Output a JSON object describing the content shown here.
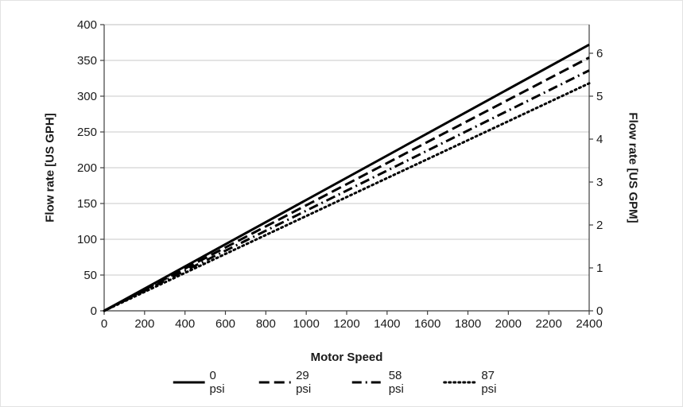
{
  "chart_data": {
    "type": "line",
    "title": "",
    "xlabel": "Motor Speed",
    "ylabel_left": "Flow rate [US GPH]",
    "ylabel_right": "Flow rate [US GPM]",
    "x_range": [
      0,
      2400
    ],
    "x_ticks": [
      0,
      200,
      400,
      600,
      800,
      1000,
      1200,
      1400,
      1600,
      1800,
      2000,
      2200,
      2400
    ],
    "y_left_range": [
      0,
      400
    ],
    "y_left_ticks": [
      0,
      50,
      100,
      150,
      200,
      250,
      300,
      350,
      400
    ],
    "y_right_ticks": [
      0,
      1,
      2,
      3,
      4,
      5,
      6
    ],
    "gpm_to_gph": 60,
    "grid": "horizontal-only",
    "legend_position": "bottom",
    "line_color": "#000000",
    "grid_color": "#c9c9c9",
    "axis_color": "#3f3f3f",
    "series": [
      {
        "name": "0 psi",
        "style": "solid",
        "x": [
          0,
          2400
        ],
        "y_gph": [
          0,
          372
        ]
      },
      {
        "name": "29 psi",
        "style": "dashed",
        "x": [
          0,
          2400
        ],
        "y_gph": [
          0,
          354
        ]
      },
      {
        "name": "58 psi",
        "style": "dash-dot",
        "x": [
          0,
          2400
        ],
        "y_gph": [
          0,
          336
        ]
      },
      {
        "name": "87 psi",
        "style": "dotted",
        "x": [
          0,
          2400
        ],
        "y_gph": [
          0,
          318
        ]
      }
    ]
  }
}
